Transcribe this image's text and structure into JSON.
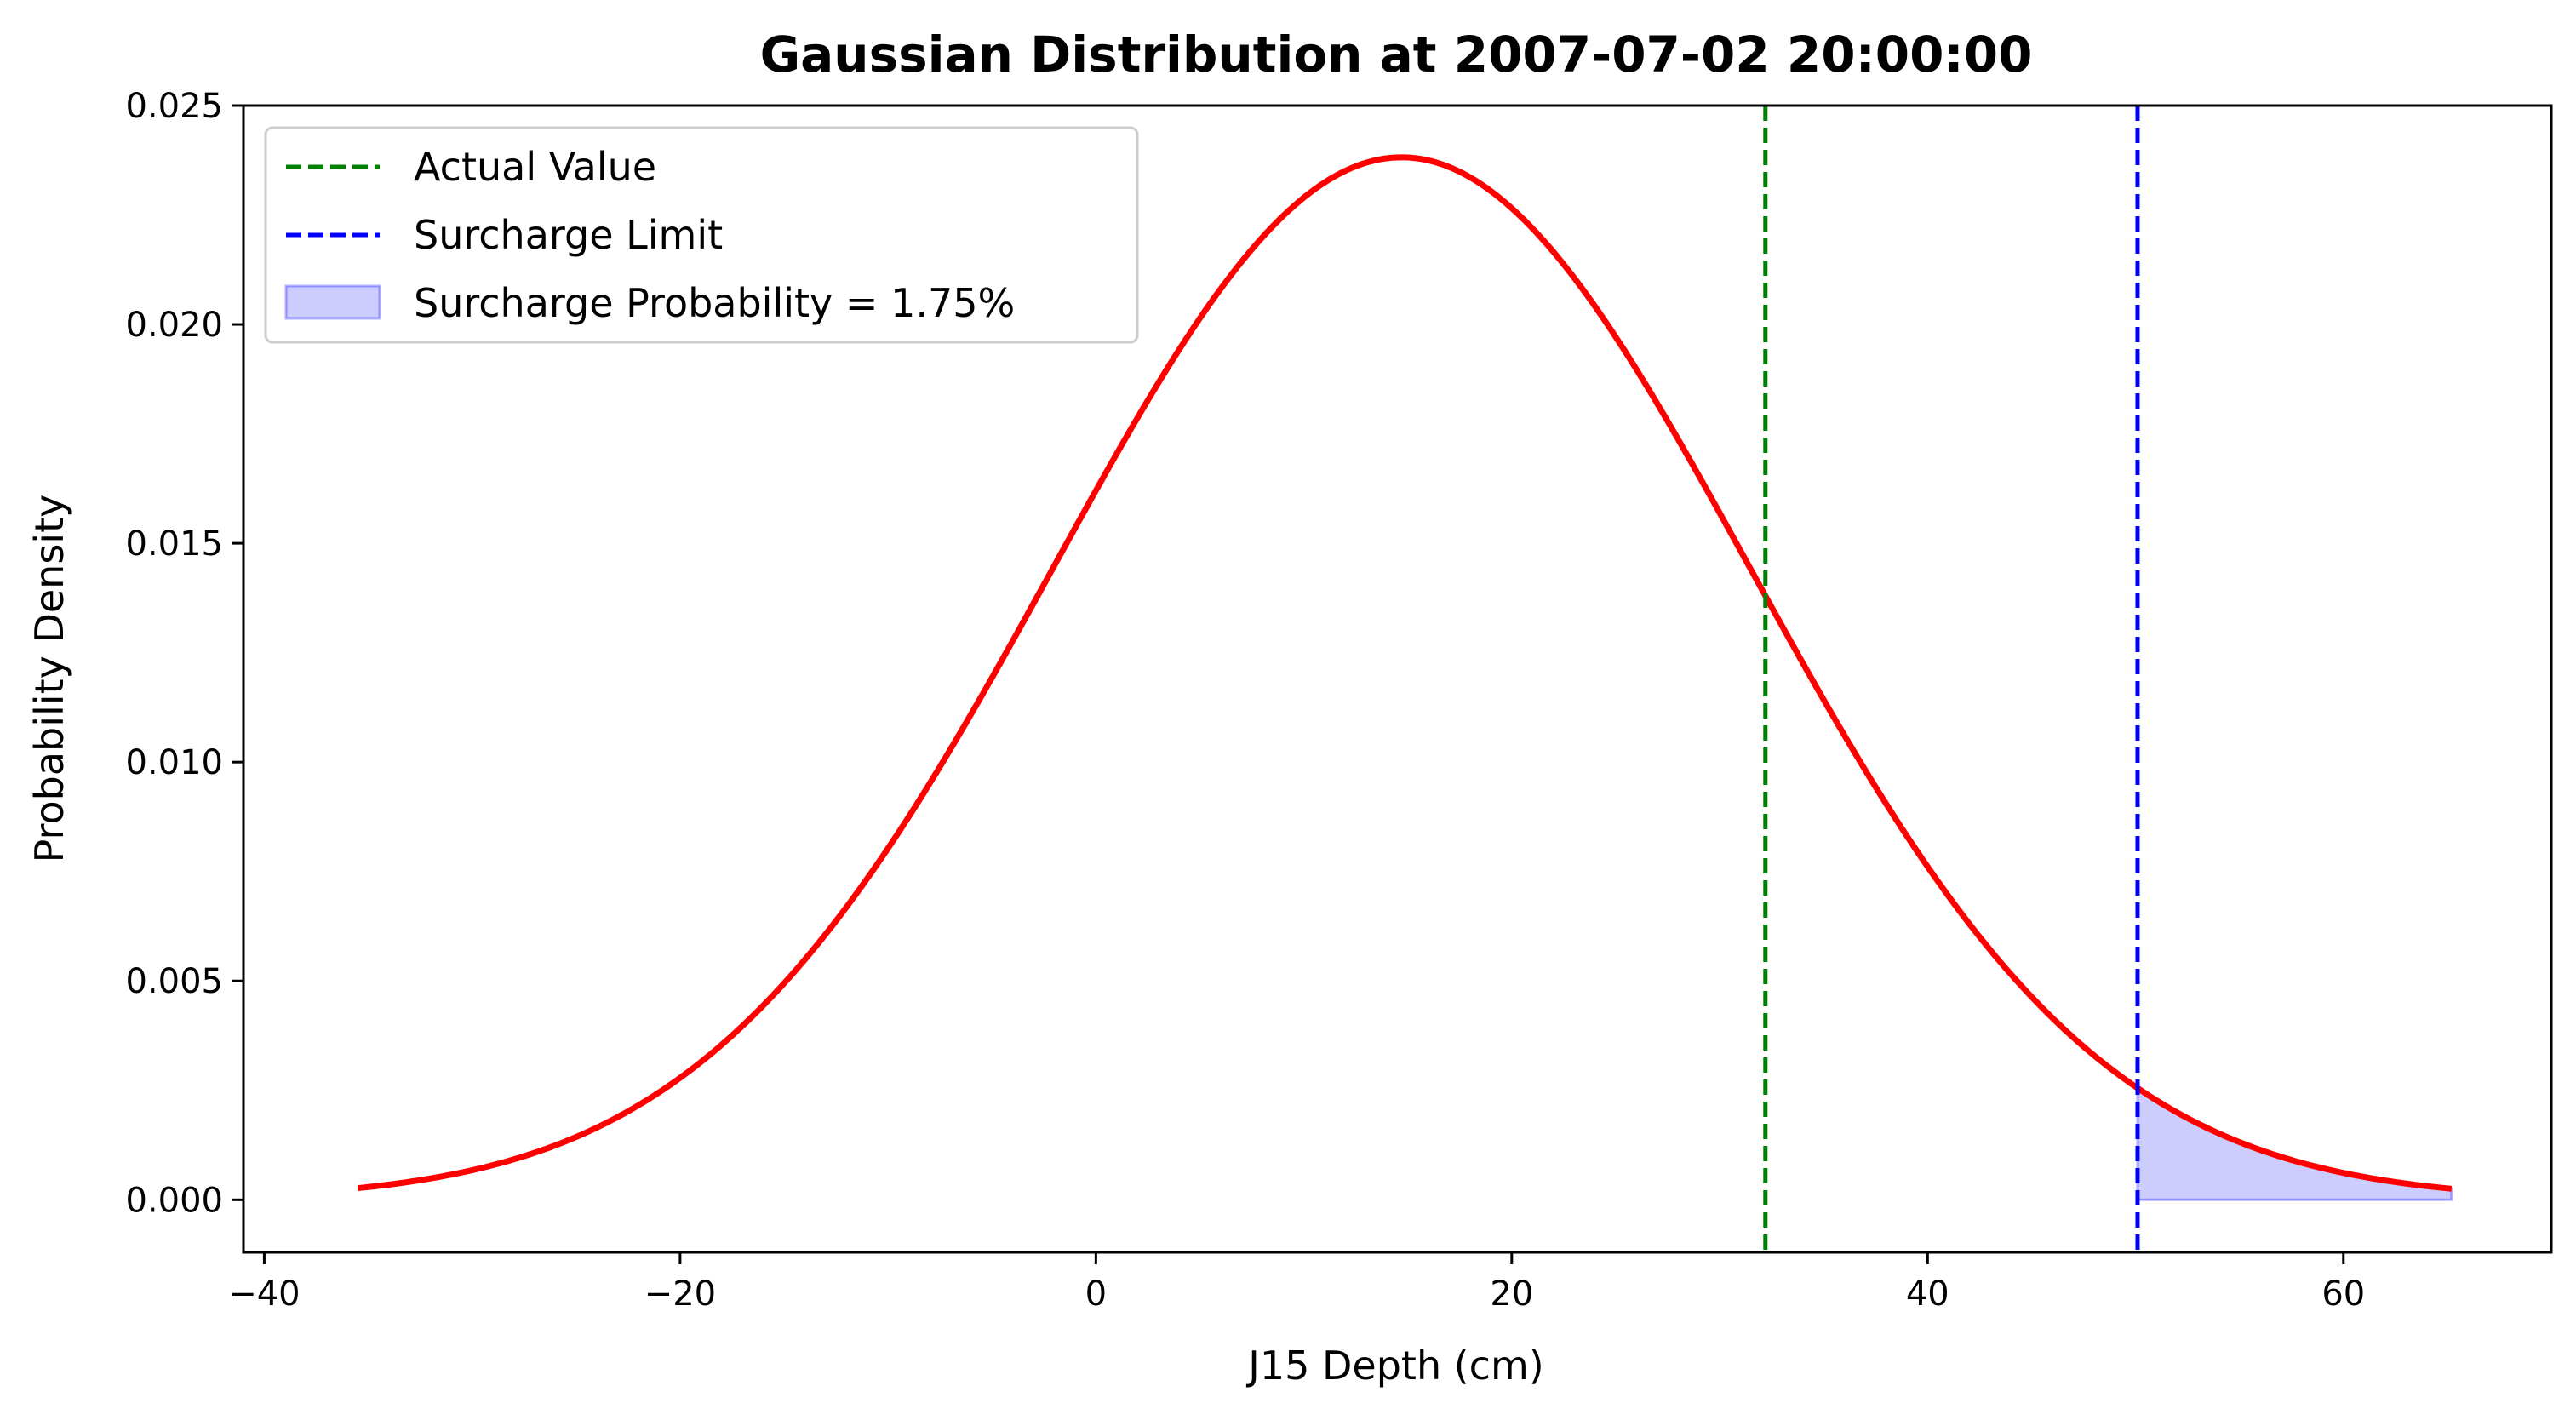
{
  "chart_data": {
    "type": "line",
    "title": "Gaussian Distribution at 2007-07-02 20:00:00",
    "xlabel": "J15 Depth (cm)",
    "ylabel": "Probability Density",
    "xlim": [
      -41,
      70
    ],
    "ylim": [
      -0.0012,
      0.025
    ],
    "x_ticks": [
      -40,
      -20,
      0,
      20,
      40,
      60
    ],
    "x_tick_labels": [
      "−40",
      "−20",
      "0",
      "20",
      "40",
      "60"
    ],
    "y_ticks": [
      0.0,
      0.005,
      0.01,
      0.015,
      0.02,
      0.025
    ],
    "y_tick_labels": [
      "0.000",
      "0.005",
      "0.010",
      "0.015",
      "0.020",
      "0.025"
    ],
    "grid": false,
    "legend_position": "upper left",
    "distribution": {
      "mean": 14.7,
      "std": 16.75,
      "x_start": -35.5,
      "x_end": 65.2,
      "color": "#ff0000"
    },
    "series": [
      {
        "name": "Actual Value",
        "style": "dashed vertical line",
        "x": 32.2,
        "color": "#008000"
      },
      {
        "name": "Surcharge Limit",
        "style": "dashed vertical line",
        "x": 50.1,
        "color": "#0000ff"
      },
      {
        "name": "Surcharge Probability = 1.75%",
        "style": "shaded area",
        "x_from": 50.1,
        "x_to": 65.2,
        "color": "#0000ff",
        "opacity": 0.2,
        "probability_percent": 1.75
      }
    ]
  }
}
